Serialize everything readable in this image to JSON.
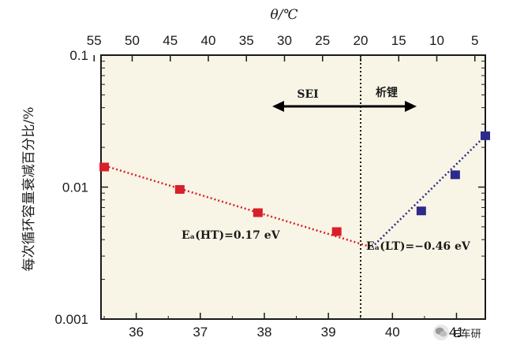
{
  "chart_data": {
    "type": "scatter",
    "top_axis_label": "θ/℃",
    "ylabel": "每次循环容量衰减百分比/%",
    "yscale": "log",
    "ylim": [
      0.001,
      0.1
    ],
    "yticks": [
      "0.001",
      "0.01",
      "0.1"
    ],
    "xlim": [
      35.45,
      41.45
    ],
    "xticks": [
      "36",
      "37",
      "38",
      "39",
      "40",
      "41"
    ],
    "top_ticks": [
      "55",
      "50",
      "45",
      "40",
      "35",
      "30",
      "25",
      "20",
      "15",
      "10",
      "5"
    ],
    "background": "#f8f5e6",
    "series": [
      {
        "color": "#d81f2a",
        "x": [
          35.5,
          36.68,
          37.9,
          39.13
        ],
        "y": [
          0.0142,
          0.0096,
          0.0064,
          0.0046
        ],
        "fit_line": {
          "x": [
            35.45,
            39.68
          ],
          "y": [
            0.0148,
            0.0035
          ]
        },
        "annotation": "Eₐ(HT)=0.17 eV"
      },
      {
        "color": "#2d2a8c",
        "x": [
          40.45,
          40.98,
          41.45
        ],
        "y": [
          0.0066,
          0.0124,
          0.0245
        ],
        "fit_line": {
          "x": [
            39.68,
            41.45
          ],
          "y": [
            0.0035,
            0.0245
          ]
        },
        "annotation": "Eₐ(LT)=−0.46 eV"
      }
    ],
    "annotations": {
      "left_region": "SEI",
      "right_region": "析锂"
    }
  },
  "watermark": {
    "text": "E车研"
  }
}
